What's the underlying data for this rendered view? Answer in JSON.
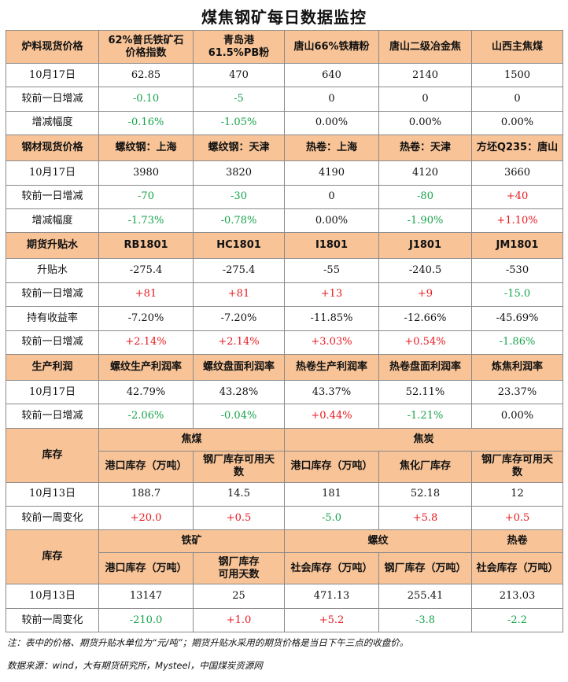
{
  "title": "煤焦钢矿每日数据监控",
  "s1": {
    "header": [
      "炉料现货价格",
      "62%普氏铁矿石\n价格指数",
      "青岛港\n61.5%PB粉",
      "唐山66%铁精粉",
      "唐山二级冶金焦",
      "山西主焦煤"
    ],
    "rows": [
      {
        "label": "10月17日",
        "values": [
          "62.85",
          "470",
          "640",
          "2140",
          "1500"
        ],
        "colors": [
          "",
          "",
          "",
          "",
          ""
        ]
      },
      {
        "label": "较前一日增减",
        "values": [
          "-0.10",
          "-5",
          "0",
          "0",
          "0"
        ],
        "colors": [
          "neg",
          "neg",
          "",
          "",
          ""
        ]
      },
      {
        "label": "增减幅度",
        "values": [
          "-0.16%",
          "-1.05%",
          "0.00%",
          "0.00%",
          "0.00%"
        ],
        "colors": [
          "neg",
          "neg",
          "",
          "",
          ""
        ]
      }
    ]
  },
  "s2": {
    "header": [
      "钢材现货价格",
      "螺纹钢：上海",
      "螺纹钢：天津",
      "热卷：上海",
      "热卷：天津",
      "方坯Q235：唐山"
    ],
    "rows": [
      {
        "label": "10月17日",
        "values": [
          "3980",
          "3820",
          "4190",
          "4120",
          "3660"
        ],
        "colors": [
          "",
          "",
          "",
          "",
          ""
        ]
      },
      {
        "label": "较前一日增减",
        "values": [
          "-70",
          "-30",
          "0",
          "-80",
          "+40"
        ],
        "colors": [
          "neg",
          "neg",
          "",
          "neg",
          "pos"
        ]
      },
      {
        "label": "增减幅度",
        "values": [
          "-1.73%",
          "-0.78%",
          "0.00%",
          "-1.90%",
          "+1.10%"
        ],
        "colors": [
          "neg",
          "neg",
          "",
          "neg",
          "pos"
        ]
      }
    ]
  },
  "s3": {
    "header": [
      "期货升贴水",
      "RB1801",
      "HC1801",
      "I1801",
      "J1801",
      "JM1801"
    ],
    "rows": [
      {
        "label": "升贴水",
        "values": [
          "-275.4",
          "-275.4",
          "-55",
          "-240.5",
          "-530"
        ],
        "colors": [
          "",
          "",
          "",
          "",
          ""
        ]
      },
      {
        "label": "较前一日增减",
        "values": [
          "+81",
          "+81",
          "+13",
          "+9",
          "-15.0"
        ],
        "colors": [
          "pos",
          "pos",
          "pos",
          "pos",
          "neg"
        ]
      },
      {
        "label": "持有收益率",
        "values": [
          "-7.20%",
          "-7.20%",
          "-11.85%",
          "-12.66%",
          "-45.69%"
        ],
        "colors": [
          "",
          "",
          "",
          "",
          ""
        ]
      },
      {
        "label": "较前一日增减",
        "values": [
          "+2.14%",
          "+2.14%",
          "+3.03%",
          "+0.54%",
          "-1.86%"
        ],
        "colors": [
          "pos",
          "pos",
          "pos",
          "pos",
          "neg"
        ]
      }
    ]
  },
  "s4": {
    "header": [
      "生产利润",
      "螺纹生产利润率",
      "螺纹盘面利润率",
      "热卷生产利润率",
      "热卷盘面利润率",
      "炼焦利润率"
    ],
    "rows": [
      {
        "label": "10月17日",
        "values": [
          "42.79%",
          "43.28%",
          "43.37%",
          "52.11%",
          "23.37%"
        ],
        "colors": [
          "",
          "",
          "",
          "",
          ""
        ]
      },
      {
        "label": "较前一日增减",
        "values": [
          "-2.06%",
          "-0.04%",
          "+0.44%",
          "-1.21%",
          "0.00%"
        ],
        "colors": [
          "neg",
          "neg",
          "pos",
          "neg",
          ""
        ]
      }
    ]
  },
  "s5": {
    "label": "库存",
    "groups": [
      "焦煤",
      "焦炭"
    ],
    "subheader": [
      "港口库存（万吨）",
      "钢厂库存可用天\n数",
      "港口库存（万吨）",
      "焦化厂库存",
      "钢厂库存可用天\n数"
    ],
    "rows": [
      {
        "label": "10月13日",
        "values": [
          "188.7",
          "14.5",
          "181",
          "52.18",
          "12"
        ],
        "colors": [
          "",
          "",
          "",
          "",
          ""
        ]
      },
      {
        "label": "较前一周变化",
        "values": [
          "+20.0",
          "+0.5",
          "-5.0",
          "+5.8",
          "+0.5"
        ],
        "colors": [
          "pos",
          "pos",
          "neg",
          "pos",
          "pos"
        ]
      }
    ]
  },
  "s6": {
    "label": "库存",
    "groups": [
      "铁矿",
      "螺纹",
      "热卷"
    ],
    "subheader": [
      "港口库存（万吨）",
      "钢厂库存\n可用天数",
      "社会库存（万吨）",
      "钢厂库存（万吨）",
      "社会库存（万吨）"
    ],
    "rows": [
      {
        "label": "10月13日",
        "values": [
          "13147",
          "25",
          "471.13",
          "255.41",
          "213.03"
        ],
        "colors": [
          "",
          "",
          "",
          "",
          ""
        ]
      },
      {
        "label": "较前一周变化",
        "values": [
          "-210.0",
          "+1.0",
          "+5.2",
          "-3.8",
          "-2.2"
        ],
        "colors": [
          "neg",
          "pos",
          "pos",
          "neg",
          "neg"
        ]
      }
    ]
  },
  "notes": {
    "note": "注：表中的价格、期货升贴水单位为“元/吨”；期货升贴水采用的期货价格是当日下午三点的收盘价。",
    "source": "数据来源：wind，大有期货研究所，Mysteel，中国煤炭资源网"
  }
}
